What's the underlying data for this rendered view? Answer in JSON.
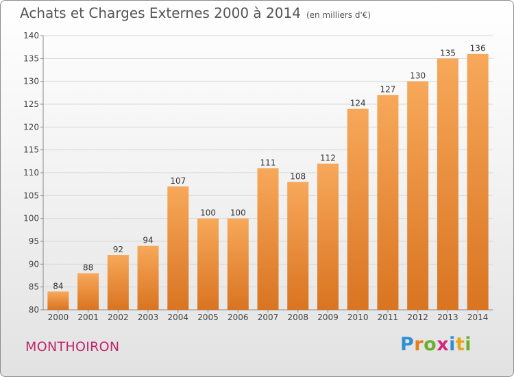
{
  "title": "Achats et Charges Externes 2000 à 2014",
  "unit": "(en milliers d'€)",
  "town": "MONTHOIRON",
  "logo_text": "Proxiti",
  "colors": {
    "bar": "#ef8c2f",
    "bar_light": "#f7a85a",
    "bar_dark": "#d97421",
    "town": "#c0266b",
    "axis_text": "#444444",
    "grid": "#d8d8d8"
  },
  "chart_data": {
    "type": "bar",
    "title": "Achats et Charges Externes 2000 à 2014",
    "subtitle": "(en milliers d'€)",
    "categories": [
      "2000",
      "2001",
      "2002",
      "2003",
      "2004",
      "2005",
      "2006",
      "2007",
      "2008",
      "2009",
      "2010",
      "2011",
      "2012",
      "2013",
      "2014"
    ],
    "values": [
      84,
      88,
      92,
      94,
      107,
      100,
      100,
      111,
      108,
      112,
      124,
      127,
      130,
      135,
      136
    ],
    "ylim": [
      80,
      140
    ],
    "yticks": [
      80,
      85,
      90,
      95,
      100,
      105,
      110,
      115,
      120,
      125,
      130,
      135,
      140
    ],
    "grid": true,
    "data_labels": true
  }
}
